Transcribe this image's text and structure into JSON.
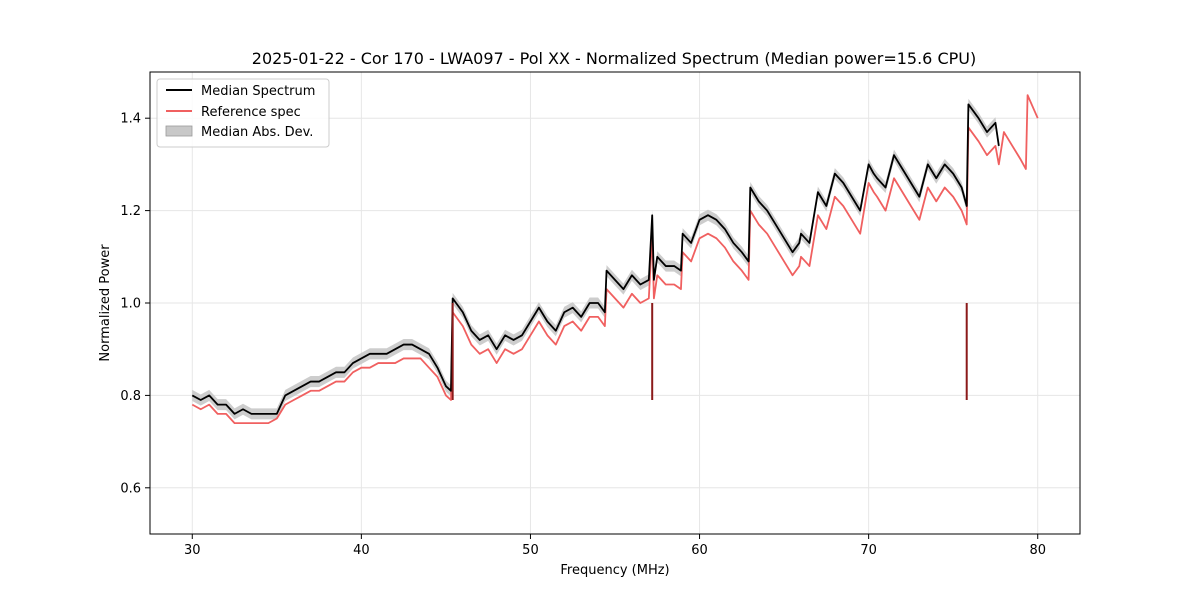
{
  "chart_data": {
    "type": "line",
    "title": "2025-01-22 - Cor 170 - LWA097 - Pol XX - Normalized Spectrum (Median power=15.6 CPU)",
    "xlabel": "Frequency (MHz)",
    "ylabel": "Normalized Power",
    "xlim": [
      27.5,
      82.5
    ],
    "ylim": [
      0.5,
      1.5
    ],
    "xticks": [
      30,
      40,
      50,
      60,
      70,
      80
    ],
    "yticks": [
      0.6,
      0.8,
      1.0,
      1.2,
      1.4
    ],
    "xtick_labels": [
      "30",
      "40",
      "50",
      "60",
      "70",
      "80"
    ],
    "ytick_labels": [
      "0.6",
      "0.8",
      "1.0",
      "1.2",
      "1.4"
    ],
    "grid": true,
    "legend_position": "top-left",
    "legend": [
      "Median Spectrum",
      "Reference spec",
      "Median Abs. Dev."
    ],
    "colors": {
      "median": "#000000",
      "reference": "#f06060",
      "mad": "#c8c8c8",
      "overlap": "#8b1a1a"
    },
    "series": [
      {
        "name": "Median Spectrum",
        "x": [
          30.0,
          30.5,
          31.0,
          31.5,
          32.0,
          32.5,
          33.0,
          33.5,
          34.0,
          34.5,
          35.0,
          35.5,
          36.0,
          36.5,
          37.0,
          37.5,
          38.0,
          38.5,
          39.0,
          39.5,
          40.0,
          40.5,
          41.0,
          41.5,
          42.0,
          42.5,
          43.0,
          43.5,
          44.0,
          44.5,
          45.0,
          45.3,
          45.4,
          46.0,
          46.5,
          47.0,
          47.5,
          48.0,
          48.5,
          49.0,
          49.5,
          50.0,
          50.5,
          51.0,
          51.5,
          52.0,
          52.5,
          53.0,
          53.5,
          54.0,
          54.4,
          54.5,
          55.0,
          55.5,
          56.0,
          56.5,
          57.0,
          57.2,
          57.3,
          57.5,
          58.0,
          58.5,
          58.9,
          59.0,
          59.5,
          60.0,
          60.5,
          61.0,
          61.5,
          62.0,
          62.5,
          62.9,
          63.0,
          63.5,
          64.0,
          64.5,
          65.0,
          65.5,
          65.9,
          66.0,
          66.5,
          67.0,
          67.5,
          68.0,
          68.5,
          69.0,
          69.5,
          70.0,
          70.3,
          70.5,
          71.0,
          71.5,
          72.0,
          72.5,
          73.0,
          73.5,
          74.0,
          74.5,
          75.0,
          75.5,
          75.8,
          75.9,
          76.5,
          77.0,
          77.5,
          77.7
        ],
        "values": [
          0.8,
          0.79,
          0.8,
          0.78,
          0.78,
          0.76,
          0.77,
          0.76,
          0.76,
          0.76,
          0.76,
          0.8,
          0.81,
          0.82,
          0.83,
          0.83,
          0.84,
          0.85,
          0.85,
          0.87,
          0.88,
          0.89,
          0.89,
          0.89,
          0.9,
          0.91,
          0.91,
          0.9,
          0.89,
          0.86,
          0.82,
          0.81,
          1.01,
          0.98,
          0.94,
          0.92,
          0.93,
          0.9,
          0.93,
          0.92,
          0.93,
          0.96,
          0.99,
          0.96,
          0.94,
          0.98,
          0.99,
          0.97,
          1.0,
          1.0,
          0.98,
          1.07,
          1.05,
          1.03,
          1.06,
          1.04,
          1.05,
          1.19,
          1.05,
          1.1,
          1.08,
          1.08,
          1.07,
          1.15,
          1.13,
          1.18,
          1.19,
          1.18,
          1.16,
          1.13,
          1.11,
          1.09,
          1.25,
          1.22,
          1.2,
          1.17,
          1.14,
          1.11,
          1.13,
          1.15,
          1.13,
          1.24,
          1.21,
          1.28,
          1.26,
          1.23,
          1.2,
          1.3,
          1.28,
          1.27,
          1.25,
          1.32,
          1.29,
          1.26,
          1.23,
          1.3,
          1.27,
          1.3,
          1.28,
          1.25,
          1.21,
          1.43,
          1.4,
          1.37,
          1.39,
          1.34
        ],
        "mad": 0.012
      },
      {
        "name": "Reference spec",
        "x": [
          30.0,
          30.5,
          31.0,
          31.5,
          32.0,
          32.5,
          33.0,
          33.5,
          34.0,
          34.5,
          35.0,
          35.5,
          36.0,
          36.5,
          37.0,
          37.5,
          38.0,
          38.5,
          39.0,
          39.5,
          40.0,
          40.5,
          41.0,
          41.5,
          42.0,
          42.5,
          43.0,
          43.5,
          44.0,
          44.5,
          45.0,
          45.3,
          45.4,
          46.0,
          46.5,
          47.0,
          47.5,
          48.0,
          48.5,
          49.0,
          49.5,
          50.0,
          50.5,
          51.0,
          51.5,
          52.0,
          52.5,
          53.0,
          53.5,
          54.0,
          54.4,
          54.5,
          55.0,
          55.5,
          56.0,
          56.5,
          57.0,
          57.2,
          57.3,
          57.5,
          58.0,
          58.5,
          58.9,
          59.0,
          59.5,
          60.0,
          60.5,
          61.0,
          61.5,
          62.0,
          62.5,
          62.9,
          63.0,
          63.5,
          64.0,
          64.5,
          65.0,
          65.5,
          65.9,
          66.0,
          66.5,
          67.0,
          67.5,
          68.0,
          68.5,
          69.0,
          69.5,
          70.0,
          70.3,
          70.5,
          71.0,
          71.5,
          72.0,
          72.5,
          73.0,
          73.5,
          74.0,
          74.5,
          75.0,
          75.5,
          75.8,
          75.9,
          76.5,
          77.0,
          77.5,
          77.7,
          78.0,
          78.5,
          79.0,
          79.3,
          79.4,
          80.0
        ],
        "values": [
          0.78,
          0.77,
          0.78,
          0.76,
          0.76,
          0.74,
          0.74,
          0.74,
          0.74,
          0.74,
          0.75,
          0.78,
          0.79,
          0.8,
          0.81,
          0.81,
          0.82,
          0.83,
          0.83,
          0.85,
          0.86,
          0.86,
          0.87,
          0.87,
          0.87,
          0.88,
          0.88,
          0.88,
          0.86,
          0.84,
          0.8,
          0.79,
          0.98,
          0.95,
          0.91,
          0.89,
          0.9,
          0.87,
          0.9,
          0.89,
          0.9,
          0.93,
          0.96,
          0.93,
          0.91,
          0.95,
          0.96,
          0.94,
          0.97,
          0.97,
          0.95,
          1.03,
          1.01,
          0.99,
          1.02,
          1.0,
          1.01,
          1.15,
          1.01,
          1.06,
          1.04,
          1.04,
          1.03,
          1.11,
          1.09,
          1.14,
          1.15,
          1.14,
          1.12,
          1.09,
          1.07,
          1.05,
          1.2,
          1.17,
          1.15,
          1.12,
          1.09,
          1.06,
          1.08,
          1.1,
          1.08,
          1.19,
          1.16,
          1.23,
          1.21,
          1.18,
          1.15,
          1.26,
          1.24,
          1.23,
          1.2,
          1.27,
          1.24,
          1.21,
          1.18,
          1.25,
          1.22,
          1.25,
          1.23,
          1.2,
          1.17,
          1.38,
          1.35,
          1.32,
          1.34,
          1.3,
          1.37,
          1.34,
          1.31,
          1.29,
          1.45,
          1.4
        ]
      }
    ]
  }
}
